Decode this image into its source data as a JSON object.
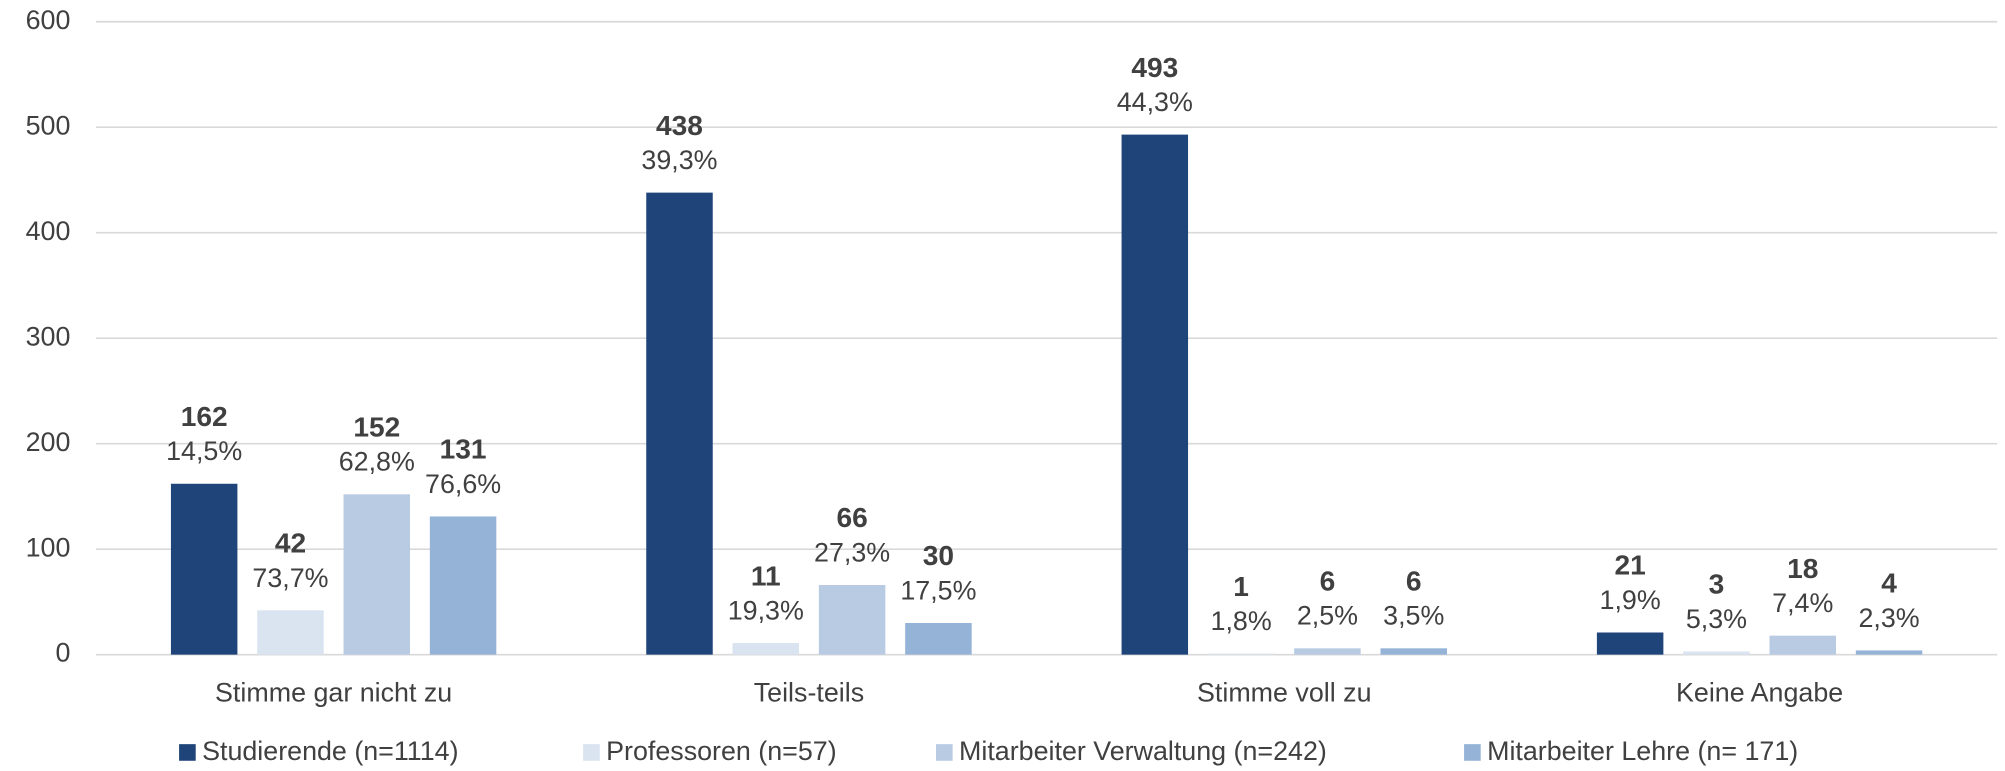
{
  "chart_data": {
    "type": "bar",
    "categories": [
      "Stimme gar nicht zu",
      "Teils-teils",
      "Stimme voll zu",
      "Keine Angabe"
    ],
    "series": [
      {
        "name": "Studierende (n=1114)",
        "color": "#1f4479",
        "values": [
          162,
          438,
          493,
          21
        ],
        "share_labels": [
          "14,5%",
          "39,3%",
          "44,3%",
          "1,9%"
        ]
      },
      {
        "name": "Professoren (n=57)",
        "color": "#dae3f0",
        "values": [
          42,
          11,
          1,
          3
        ],
        "share_labels": [
          "73,7%",
          "19,3%",
          "1,8%",
          "5,3%"
        ]
      },
      {
        "name": "Mitarbeiter Verwaltung (n=242)",
        "color": "#b8cbe3",
        "values": [
          152,
          66,
          6,
          18
        ],
        "share_labels": [
          "62,8%",
          "27,3%",
          "2,5%",
          "7,4%"
        ]
      },
      {
        "name": "Mitarbeiter Lehre (n= 171)",
        "color": "#95b3d7",
        "values": [
          131,
          30,
          6,
          4
        ],
        "share_labels": [
          "76,6%",
          "17,5%",
          "3,5%",
          "2,3%"
        ]
      }
    ],
    "ylim": [
      0,
      600
    ],
    "yticks": [
      0,
      100,
      200,
      300,
      400,
      500,
      600
    ],
    "grid": true,
    "legend": "bottom"
  }
}
